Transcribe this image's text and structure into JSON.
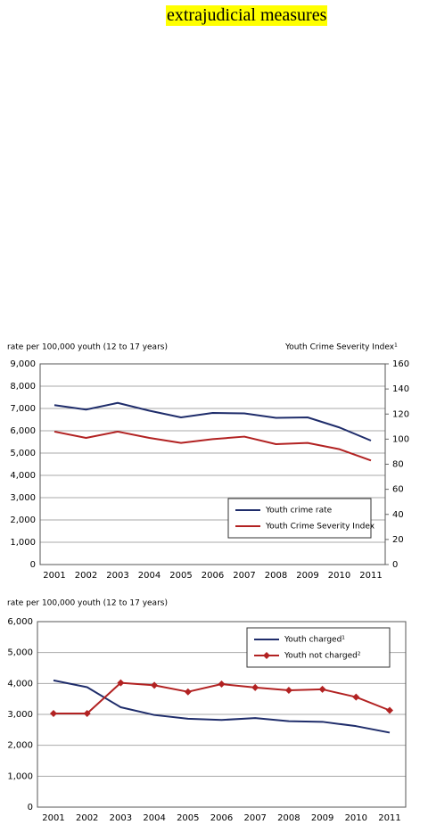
{
  "heading": "extrajudicial measures",
  "chart_data": [
    {
      "type": "line",
      "ylabel": "rate per 100,000 youth (12 to 17 years)",
      "y2label": "Youth Crime Severity Index¹",
      "categories": [
        "2001",
        "2002",
        "2003",
        "2004",
        "2005",
        "2006",
        "2007",
        "2008",
        "2009",
        "2010",
        "2011"
      ],
      "series": [
        {
          "name": "Youth crime rate",
          "color": "#1f2d6b",
          "values": [
            7150,
            6950,
            7250,
            6900,
            6600,
            6800,
            6780,
            6580,
            6600,
            6150,
            5560
          ]
        },
        {
          "name": "Youth Crime Severity Index",
          "color": "#b22222",
          "axis": "y2",
          "values": [
            106,
            101,
            106,
            101,
            97,
            100,
            102,
            96,
            97,
            92,
            83
          ]
        }
      ],
      "ylim": [
        0,
        9000
      ],
      "yticks": [
        {
          "value": 0,
          "label": "0"
        },
        {
          "value": 1000,
          "label": "1,000"
        },
        {
          "value": 2000,
          "label": "2,000"
        },
        {
          "value": 3000,
          "label": "3,000"
        },
        {
          "value": 4000,
          "label": "4,000"
        },
        {
          "value": 5000,
          "label": "5,000"
        },
        {
          "value": 6000,
          "label": "6,000"
        },
        {
          "value": 7000,
          "label": "7,000"
        },
        {
          "value": 8000,
          "label": "8,000"
        },
        {
          "value": 9000,
          "label": "9,000"
        }
      ],
      "y2lim": [
        0,
        160
      ],
      "y2ticks": [
        0,
        20,
        40,
        60,
        80,
        100,
        120,
        140,
        160
      ],
      "grid": true,
      "legend": "lower right"
    },
    {
      "type": "line",
      "ylabel": "rate per 100,000 youth (12 to 17 years)",
      "categories": [
        "2001",
        "2002",
        "2003",
        "2004",
        "2005",
        "2006",
        "2007",
        "2008",
        "2009",
        "2010",
        "2011"
      ],
      "series": [
        {
          "name": "Youth charged¹",
          "color": "#1f2d6b",
          "values": [
            4100,
            3880,
            3230,
            2980,
            2860,
            2820,
            2880,
            2780,
            2760,
            2620,
            2410
          ]
        },
        {
          "name": "Youth not charged²",
          "color": "#b22222",
          "marker": "diamond",
          "values": [
            3030,
            3030,
            4020,
            3940,
            3730,
            3980,
            3870,
            3780,
            3810,
            3560,
            3130
          ]
        }
      ],
      "ylim": [
        0,
        6000
      ],
      "yticks": [
        {
          "value": 0,
          "label": "0"
        },
        {
          "value": 1000,
          "label": "1,000"
        },
        {
          "value": 2000,
          "label": "2,000"
        },
        {
          "value": 3000,
          "label": "3,000"
        },
        {
          "value": 4000,
          "label": "4,000"
        },
        {
          "value": 5000,
          "label": "5,000"
        },
        {
          "value": 6000,
          "label": "6,000"
        }
      ],
      "grid": true,
      "legend": "upper right"
    }
  ]
}
